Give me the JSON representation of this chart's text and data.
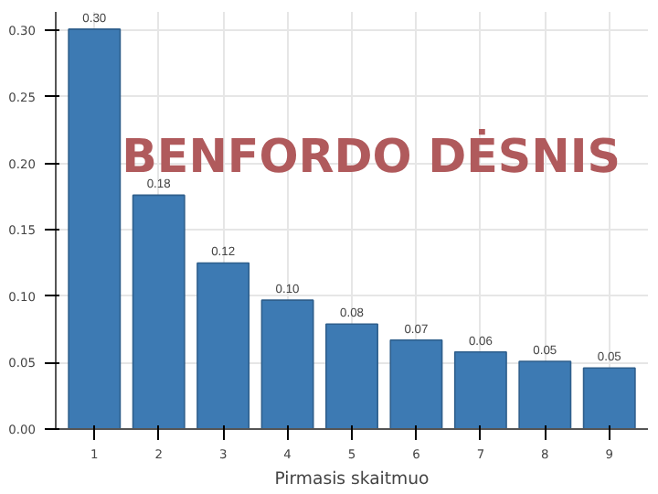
{
  "chart_data": {
    "type": "bar",
    "title": "BENFORDO DĖSNIS",
    "xlabel": "Pirmasis skaitmuo",
    "categories": [
      "1",
      "2",
      "3",
      "4",
      "5",
      "6",
      "7",
      "8",
      "9"
    ],
    "values": [
      0.301,
      0.176,
      0.125,
      0.097,
      0.079,
      0.067,
      0.058,
      0.051,
      0.046
    ],
    "value_labels": [
      "0.30",
      "0.18",
      "0.12",
      "0.10",
      "0.08",
      "0.07",
      "0.06",
      "0.05",
      "0.05"
    ],
    "color": "#3d7ab3",
    "ylim": [
      0,
      0.314
    ],
    "yticks": [
      {
        "value": 0,
        "label": "0.00"
      },
      {
        "value": 0.05,
        "label": "0.05"
      },
      {
        "value": 0.1,
        "label": "0.10"
      },
      {
        "value": 0.15,
        "label": "0.15"
      },
      {
        "value": 0.2,
        "label": "0.20"
      },
      {
        "value": 0.25,
        "label": "0.25"
      },
      {
        "value": 0.3,
        "label": "0.30"
      }
    ],
    "grid": true
  }
}
